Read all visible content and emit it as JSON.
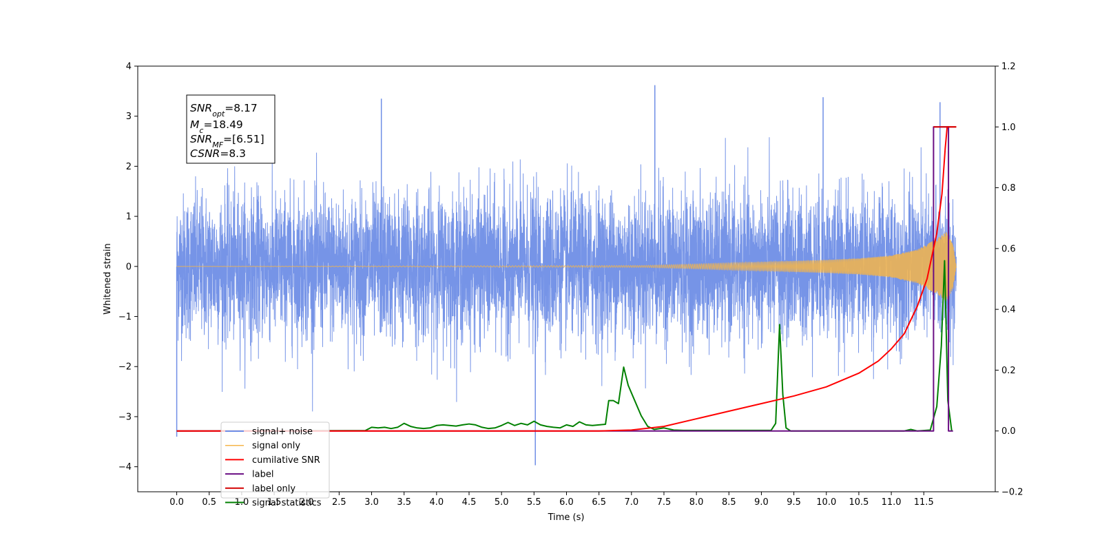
{
  "chart_data": {
    "type": "line",
    "xlabel": "Time (s)",
    "ylabel": "Whitened strain",
    "xlim": [
      -0.6,
      12.6
    ],
    "ylim": [
      -4.5,
      4
    ],
    "y2lim": [
      -0.2,
      1.2
    ],
    "x_ticks": [
      0.0,
      0.5,
      1.0,
      1.5,
      2.0,
      2.5,
      3.0,
      3.5,
      4.0,
      4.5,
      5.0,
      5.5,
      6.0,
      6.5,
      7.0,
      7.5,
      8.0,
      8.5,
      9.0,
      9.5,
      10.0,
      10.5,
      11.0,
      11.5
    ],
    "x_tick_labels": [
      "0.0",
      "0.5",
      "1.0",
      "1.5",
      "2.0",
      "2.5",
      "3.0",
      "3.5",
      "4.0",
      "4.5",
      "5.0",
      "5.5",
      "6.0",
      "6.5",
      "7.0",
      "7.5",
      "8.0",
      "8.5",
      "9.0",
      "9.5",
      "10.0",
      "10.5",
      "11.0",
      "11.5"
    ],
    "y_ticks": [
      -4,
      -3,
      -2,
      -1,
      0,
      1,
      2,
      3,
      4
    ],
    "y_tick_labels": [
      "−4",
      "−3",
      "−2",
      "−1",
      "0",
      "1",
      "2",
      "3",
      "4"
    ],
    "y2_ticks": [
      -0.2,
      0.0,
      0.2,
      0.4,
      0.6,
      0.8,
      1.0,
      1.2
    ],
    "y2_tick_labels": [
      "−0.2",
      "0.0",
      "0.2",
      "0.4",
      "0.6",
      "0.8",
      "1.0",
      "1.2"
    ],
    "grid": false,
    "legend_placement": "lower-left",
    "annotation": {
      "lines": [
        {
          "main": "SNR",
          "sub": "opt",
          "rest": "=8.17"
        },
        {
          "main": "M",
          "sub": "c",
          "rest": "=18.49"
        },
        {
          "main": "SNR",
          "sub": "MF",
          "rest": "=[6.51]"
        },
        {
          "main": "CSNR",
          "sub": "",
          "rest": "=8.3"
        }
      ]
    },
    "series": [
      {
        "name": "signal+ noise",
        "axis": "left",
        "color": "#6f8ee6",
        "description_kind": "noise",
        "x_range": [
          0.0,
          12.0
        ],
        "noise_std": 0.72,
        "notable_extremes": [
          {
            "x": 0.0,
            "y": -3.4
          },
          {
            "x": 5.52,
            "y": -3.97
          },
          {
            "x": 7.36,
            "y": 3.62
          },
          {
            "x": 3.15,
            "y": 3.35
          },
          {
            "x": 9.95,
            "y": 3.38
          },
          {
            "x": 11.75,
            "y": 3.28
          }
        ]
      },
      {
        "name": "signal only",
        "axis": "left",
        "color": "#f5b54a",
        "description_kind": "chirp",
        "x_range": [
          0.0,
          12.0
        ],
        "envelope": [
          [
            0.0,
            0.0
          ],
          [
            7.2,
            0.02
          ],
          [
            8.0,
            0.05
          ],
          [
            9.0,
            0.09
          ],
          [
            10.0,
            0.13
          ],
          [
            10.5,
            0.16
          ],
          [
            11.0,
            0.22
          ],
          [
            11.4,
            0.34
          ],
          [
            11.7,
            0.55
          ],
          [
            11.85,
            0.7
          ],
          [
            11.95,
            0.45
          ],
          [
            12.0,
            0.0
          ]
        ]
      },
      {
        "name": "cumilative SNR",
        "axis": "right",
        "color": "#ff0000",
        "points": [
          [
            0.0,
            0.0
          ],
          [
            6.5,
            0.0
          ],
          [
            7.0,
            0.003
          ],
          [
            7.5,
            0.015
          ],
          [
            8.0,
            0.04
          ],
          [
            8.5,
            0.065
          ],
          [
            9.0,
            0.09
          ],
          [
            9.5,
            0.115
          ],
          [
            10.0,
            0.145
          ],
          [
            10.5,
            0.19
          ],
          [
            10.8,
            0.23
          ],
          [
            11.0,
            0.27
          ],
          [
            11.2,
            0.32
          ],
          [
            11.4,
            0.41
          ],
          [
            11.55,
            0.5
          ],
          [
            11.7,
            0.65
          ],
          [
            11.78,
            0.78
          ],
          [
            11.83,
            0.93
          ],
          [
            11.86,
            1.0
          ],
          [
            12.0,
            1.0
          ]
        ]
      },
      {
        "name": "label",
        "axis": "right",
        "color": "#6a0d83",
        "points": [
          [
            0.0,
            0.0
          ],
          [
            11.65,
            0.0
          ],
          [
            11.65,
            1.0
          ],
          [
            11.88,
            1.0
          ],
          [
            11.88,
            0.0
          ],
          [
            11.95,
            0.0
          ]
        ]
      },
      {
        "name": "label only",
        "axis": "right",
        "color": "#d40000",
        "points": [
          [
            11.65,
            1.0
          ],
          [
            12.0,
            1.0
          ]
        ]
      },
      {
        "name": "signal statistics",
        "axis": "right",
        "color": "#008000",
        "points": [
          [
            0.0,
            0.0
          ],
          [
            0.1,
            0.0
          ],
          [
            2.9,
            0.001
          ],
          [
            3.0,
            0.012
          ],
          [
            3.1,
            0.01
          ],
          [
            3.2,
            0.012
          ],
          [
            3.3,
            0.008
          ],
          [
            3.4,
            0.012
          ],
          [
            3.5,
            0.025
          ],
          [
            3.6,
            0.015
          ],
          [
            3.7,
            0.01
          ],
          [
            3.8,
            0.008
          ],
          [
            3.9,
            0.01
          ],
          [
            4.0,
            0.018
          ],
          [
            4.1,
            0.02
          ],
          [
            4.2,
            0.018
          ],
          [
            4.3,
            0.016
          ],
          [
            4.4,
            0.02
          ],
          [
            4.5,
            0.023
          ],
          [
            4.6,
            0.02
          ],
          [
            4.7,
            0.012
          ],
          [
            4.8,
            0.008
          ],
          [
            4.9,
            0.01
          ],
          [
            5.0,
            0.018
          ],
          [
            5.1,
            0.028
          ],
          [
            5.2,
            0.018
          ],
          [
            5.3,
            0.025
          ],
          [
            5.4,
            0.02
          ],
          [
            5.5,
            0.032
          ],
          [
            5.6,
            0.02
          ],
          [
            5.7,
            0.015
          ],
          [
            5.8,
            0.012
          ],
          [
            5.9,
            0.01
          ],
          [
            6.0,
            0.02
          ],
          [
            6.1,
            0.015
          ],
          [
            6.2,
            0.03
          ],
          [
            6.3,
            0.02
          ],
          [
            6.4,
            0.018
          ],
          [
            6.5,
            0.02
          ],
          [
            6.6,
            0.022
          ],
          [
            6.65,
            0.1
          ],
          [
            6.72,
            0.1
          ],
          [
            6.8,
            0.09
          ],
          [
            6.88,
            0.21
          ],
          [
            6.95,
            0.15
          ],
          [
            7.05,
            0.1
          ],
          [
            7.15,
            0.05
          ],
          [
            7.25,
            0.015
          ],
          [
            7.35,
            0.005
          ],
          [
            7.5,
            0.01
          ],
          [
            7.65,
            0.003
          ],
          [
            7.8,
            0.002
          ],
          [
            9.15,
            0.002
          ],
          [
            9.22,
            0.025
          ],
          [
            9.28,
            0.35
          ],
          [
            9.33,
            0.12
          ],
          [
            9.38,
            0.01
          ],
          [
            9.45,
            0.0
          ],
          [
            11.2,
            0.0
          ],
          [
            11.3,
            0.005
          ],
          [
            11.4,
            0.0
          ],
          [
            11.6,
            0.003
          ],
          [
            11.7,
            0.08
          ],
          [
            11.77,
            0.28
          ],
          [
            11.82,
            0.56
          ],
          [
            11.87,
            0.1
          ],
          [
            11.93,
            0.0
          ]
        ]
      }
    ]
  }
}
